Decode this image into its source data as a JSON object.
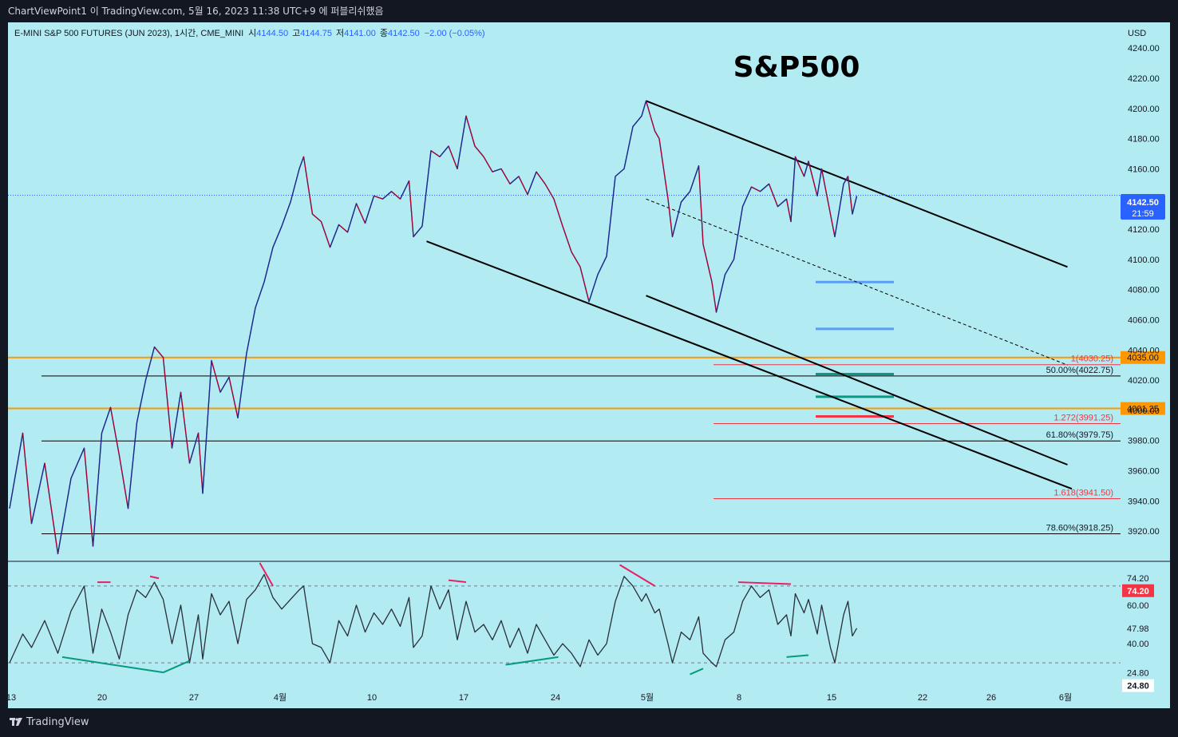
{
  "header": {
    "publish_line": "ChartViewPoint1 이 TradingView.com, 5월 16, 2023 11:38 UTC+9 에 퍼블리쉬했음"
  },
  "chart_data": {
    "type": "line",
    "symbol_line": "E-MINI S&P 500 FUTURES (JUN 2023), 1시간, CME_MINI",
    "ohlc": {
      "o_label": "시",
      "o": "4144.50",
      "h_label": "고",
      "h": "4144.75",
      "l_label": "저",
      "l": "4141.00",
      "c_label": "종",
      "c": "4142.50",
      "change": "−2.00 (−0.05%)"
    },
    "title": "S&P500",
    "currency": "USD",
    "price_axis": {
      "ticks": [
        4240,
        4220,
        4200,
        4180,
        4160,
        4140,
        4120,
        4100,
        4080,
        4060,
        4040,
        4020,
        4000,
        3980,
        3960,
        3940,
        3920
      ],
      "range": [
        3900,
        4257
      ]
    },
    "time_axis": {
      "labels": [
        "13",
        "20",
        "27",
        "4월",
        "10",
        "17",
        "24",
        "5월",
        "8",
        "15",
        "22",
        "26",
        "6월"
      ]
    },
    "last_price": {
      "value": "4142.50",
      "countdown": "21:59",
      "raw": 4142.5
    },
    "price_series": [
      {
        "t": 0,
        "p": 3935
      },
      {
        "t": 3,
        "p": 3985
      },
      {
        "t": 5,
        "p": 3925
      },
      {
        "t": 8,
        "p": 3965
      },
      {
        "t": 11,
        "p": 3905
      },
      {
        "t": 14,
        "p": 3955
      },
      {
        "t": 17,
        "p": 3975
      },
      {
        "t": 19,
        "p": 3910
      },
      {
        "t": 21,
        "p": 3985
      },
      {
        "t": 23,
        "p": 4002
      },
      {
        "t": 25,
        "p": 3970
      },
      {
        "t": 27,
        "p": 3935
      },
      {
        "t": 29,
        "p": 3992
      },
      {
        "t": 31,
        "p": 4020
      },
      {
        "t": 33,
        "p": 4042
      },
      {
        "t": 35,
        "p": 4035
      },
      {
        "t": 37,
        "p": 3975
      },
      {
        "t": 39,
        "p": 4012
      },
      {
        "t": 41,
        "p": 3965
      },
      {
        "t": 43,
        "p": 3985
      },
      {
        "t": 44,
        "p": 3945
      },
      {
        "t": 46,
        "p": 4033
      },
      {
        "t": 48,
        "p": 4012
      },
      {
        "t": 50,
        "p": 4022
      },
      {
        "t": 52,
        "p": 3995
      },
      {
        "t": 54,
        "p": 4038
      },
      {
        "t": 56,
        "p": 4068
      },
      {
        "t": 58,
        "p": 4085
      },
      {
        "t": 60,
        "p": 4108
      },
      {
        "t": 62,
        "p": 4122
      },
      {
        "t": 64,
        "p": 4138
      },
      {
        "t": 66,
        "p": 4160
      },
      {
        "t": 67,
        "p": 4168
      },
      {
        "t": 69,
        "p": 4130
      },
      {
        "t": 71,
        "p": 4125
      },
      {
        "t": 73,
        "p": 4108
      },
      {
        "t": 75,
        "p": 4123
      },
      {
        "t": 77,
        "p": 4118
      },
      {
        "t": 79,
        "p": 4137
      },
      {
        "t": 81,
        "p": 4124
      },
      {
        "t": 83,
        "p": 4142
      },
      {
        "t": 85,
        "p": 4140
      },
      {
        "t": 87,
        "p": 4145
      },
      {
        "t": 89,
        "p": 4140
      },
      {
        "t": 91,
        "p": 4152
      },
      {
        "t": 92,
        "p": 4115
      },
      {
        "t": 94,
        "p": 4122
      },
      {
        "t": 96,
        "p": 4172
      },
      {
        "t": 98,
        "p": 4168
      },
      {
        "t": 100,
        "p": 4175
      },
      {
        "t": 102,
        "p": 4160
      },
      {
        "t": 104,
        "p": 4195
      },
      {
        "t": 106,
        "p": 4175
      },
      {
        "t": 108,
        "p": 4168
      },
      {
        "t": 110,
        "p": 4158
      },
      {
        "t": 112,
        "p": 4160
      },
      {
        "t": 114,
        "p": 4150
      },
      {
        "t": 116,
        "p": 4155
      },
      {
        "t": 118,
        "p": 4143
      },
      {
        "t": 120,
        "p": 4158
      },
      {
        "t": 122,
        "p": 4150
      },
      {
        "t": 124,
        "p": 4140
      },
      {
        "t": 126,
        "p": 4122
      },
      {
        "t": 128,
        "p": 4105
      },
      {
        "t": 130,
        "p": 4095
      },
      {
        "t": 132,
        "p": 4072
      },
      {
        "t": 134,
        "p": 4090
      },
      {
        "t": 136,
        "p": 4102
      },
      {
        "t": 138,
        "p": 4155
      },
      {
        "t": 140,
        "p": 4160
      },
      {
        "t": 142,
        "p": 4188
      },
      {
        "t": 144,
        "p": 4195
      },
      {
        "t": 145,
        "p": 4205
      },
      {
        "t": 147,
        "p": 4185
      },
      {
        "t": 148,
        "p": 4180
      },
      {
        "t": 150,
        "p": 4140
      },
      {
        "t": 151,
        "p": 4115
      },
      {
        "t": 153,
        "p": 4138
      },
      {
        "t": 155,
        "p": 4145
      },
      {
        "t": 157,
        "p": 4162
      },
      {
        "t": 158,
        "p": 4110
      },
      {
        "t": 160,
        "p": 4085
      },
      {
        "t": 161,
        "p": 4065
      },
      {
        "t": 163,
        "p": 4090
      },
      {
        "t": 165,
        "p": 4100
      },
      {
        "t": 167,
        "p": 4135
      },
      {
        "t": 169,
        "p": 4148
      },
      {
        "t": 171,
        "p": 4145
      },
      {
        "t": 173,
        "p": 4150
      },
      {
        "t": 175,
        "p": 4135
      },
      {
        "t": 177,
        "p": 4140
      },
      {
        "t": 178,
        "p": 4125
      },
      {
        "t": 179,
        "p": 4168
      },
      {
        "t": 181,
        "p": 4155
      },
      {
        "t": 182,
        "p": 4165
      },
      {
        "t": 184,
        "p": 4142
      },
      {
        "t": 185,
        "p": 4160
      },
      {
        "t": 187,
        "p": 4130
      },
      {
        "t": 188,
        "p": 4115
      },
      {
        "t": 190,
        "p": 4150
      },
      {
        "t": 191,
        "p": 4155
      },
      {
        "t": 192,
        "p": 4130
      },
      {
        "t": 193,
        "p": 4142
      }
    ],
    "trend_lines": [
      {
        "name": "channel-upper",
        "x1": 145,
        "y1": 4205,
        "x2": 241,
        "y2": 4095
      },
      {
        "name": "channel-lower-1",
        "x1": 95,
        "y1": 4112,
        "x2": 242,
        "y2": 3948
      },
      {
        "name": "channel-lower-2",
        "x1": 145,
        "y1": 4076,
        "x2": 241,
        "y2": 3964
      },
      {
        "name": "channel-mid-dashed",
        "x1": 145,
        "y1": 4140,
        "x2": 241,
        "y2": 4030
      }
    ],
    "horizontal_levels": [
      {
        "price": 4035.0,
        "label": "4035.00",
        "color": "#ff9800",
        "kind": "orange-level"
      },
      {
        "price": 4001.25,
        "label": "4001.25",
        "color": "#ff9800",
        "kind": "orange-level"
      },
      {
        "price": 4022.75,
        "label": "50.00%(4022.75)",
        "color": "#000000",
        "kind": "fib"
      },
      {
        "price": 3979.75,
        "label": "61.80%(3979.75)",
        "color": "#000000",
        "kind": "fib"
      },
      {
        "price": 3918.25,
        "label": "78.60%(3918.25)",
        "color": "#000000",
        "kind": "fib"
      },
      {
        "price": 4030.25,
        "label": "1(4030.25)",
        "color": "#f23645",
        "kind": "ext"
      },
      {
        "price": 3991.25,
        "label": "1.272(3991.25)",
        "color": "#f23645",
        "kind": "ext"
      },
      {
        "price": 3941.5,
        "label": "1.618(3941.50)",
        "color": "#f23645",
        "kind": "ext"
      }
    ],
    "target_marks": [
      {
        "price": 4085,
        "color": "#5b9cf6"
      },
      {
        "price": 4054,
        "color": "#5b9cf6"
      },
      {
        "price": 4024,
        "color": "#089981"
      },
      {
        "price": 4009,
        "color": "#089981"
      },
      {
        "price": 3996,
        "color": "#f23645"
      }
    ],
    "rsi": {
      "range": [
        18,
        82
      ],
      "levels": [
        70,
        30
      ],
      "ticks": [
        {
          "value": "74.20",
          "v": 74.2
        },
        {
          "value": "60.00",
          "v": 60
        },
        {
          "value": "47.98",
          "v": 47.98
        },
        {
          "value": "40.00",
          "v": 40
        },
        {
          "value": "24.80",
          "v": 24.8
        }
      ],
      "badges": [
        {
          "value": "74.20",
          "v": 74.2,
          "color": "#f23645"
        },
        {
          "value": "24.80",
          "v": 24.8,
          "color": "#ffffff"
        }
      ],
      "series": [
        {
          "t": 0,
          "v": 30
        },
        {
          "t": 3,
          "v": 45
        },
        {
          "t": 5,
          "v": 38
        },
        {
          "t": 8,
          "v": 52
        },
        {
          "t": 11,
          "v": 35
        },
        {
          "t": 14,
          "v": 57
        },
        {
          "t": 17,
          "v": 70
        },
        {
          "t": 19,
          "v": 35
        },
        {
          "t": 21,
          "v": 58
        },
        {
          "t": 23,
          "v": 46
        },
        {
          "t": 25,
          "v": 32
        },
        {
          "t": 27,
          "v": 55
        },
        {
          "t": 29,
          "v": 68
        },
        {
          "t": 31,
          "v": 64
        },
        {
          "t": 33,
          "v": 72
        },
        {
          "t": 35,
          "v": 63
        },
        {
          "t": 37,
          "v": 40
        },
        {
          "t": 39,
          "v": 60
        },
        {
          "t": 41,
          "v": 30
        },
        {
          "t": 43,
          "v": 55
        },
        {
          "t": 44,
          "v": 32
        },
        {
          "t": 46,
          "v": 66
        },
        {
          "t": 48,
          "v": 55
        },
        {
          "t": 50,
          "v": 62
        },
        {
          "t": 52,
          "v": 40
        },
        {
          "t": 54,
          "v": 63
        },
        {
          "t": 56,
          "v": 68
        },
        {
          "t": 58,
          "v": 76
        },
        {
          "t": 60,
          "v": 64
        },
        {
          "t": 62,
          "v": 58
        },
        {
          "t": 64,
          "v": 63
        },
        {
          "t": 66,
          "v": 68
        },
        {
          "t": 67,
          "v": 70
        },
        {
          "t": 69,
          "v": 40
        },
        {
          "t": 71,
          "v": 38
        },
        {
          "t": 73,
          "v": 30
        },
        {
          "t": 75,
          "v": 52
        },
        {
          "t": 77,
          "v": 44
        },
        {
          "t": 79,
          "v": 60
        },
        {
          "t": 81,
          "v": 46
        },
        {
          "t": 83,
          "v": 56
        },
        {
          "t": 85,
          "v": 50
        },
        {
          "t": 87,
          "v": 58
        },
        {
          "t": 89,
          "v": 49
        },
        {
          "t": 91,
          "v": 64
        },
        {
          "t": 92,
          "v": 38
        },
        {
          "t": 94,
          "v": 44
        },
        {
          "t": 96,
          "v": 70
        },
        {
          "t": 98,
          "v": 58
        },
        {
          "t": 100,
          "v": 68
        },
        {
          "t": 102,
          "v": 42
        },
        {
          "t": 104,
          "v": 62
        },
        {
          "t": 106,
          "v": 46
        },
        {
          "t": 108,
          "v": 50
        },
        {
          "t": 110,
          "v": 42
        },
        {
          "t": 112,
          "v": 52
        },
        {
          "t": 114,
          "v": 38
        },
        {
          "t": 116,
          "v": 48
        },
        {
          "t": 118,
          "v": 35
        },
        {
          "t": 120,
          "v": 50
        },
        {
          "t": 122,
          "v": 42
        },
        {
          "t": 124,
          "v": 34
        },
        {
          "t": 126,
          "v": 40
        },
        {
          "t": 128,
          "v": 35
        },
        {
          "t": 130,
          "v": 28
        },
        {
          "t": 132,
          "v": 42
        },
        {
          "t": 134,
          "v": 34
        },
        {
          "t": 136,
          "v": 40
        },
        {
          "t": 138,
          "v": 62
        },
        {
          "t": 140,
          "v": 75
        },
        {
          "t": 142,
          "v": 70
        },
        {
          "t": 144,
          "v": 62
        },
        {
          "t": 145,
          "v": 66
        },
        {
          "t": 147,
          "v": 56
        },
        {
          "t": 148,
          "v": 58
        },
        {
          "t": 150,
          "v": 40
        },
        {
          "t": 151,
          "v": 30
        },
        {
          "t": 153,
          "v": 46
        },
        {
          "t": 155,
          "v": 42
        },
        {
          "t": 157,
          "v": 54
        },
        {
          "t": 158,
          "v": 35
        },
        {
          "t": 160,
          "v": 30
        },
        {
          "t": 161,
          "v": 28
        },
        {
          "t": 163,
          "v": 42
        },
        {
          "t": 165,
          "v": 46
        },
        {
          "t": 167,
          "v": 62
        },
        {
          "t": 169,
          "v": 70
        },
        {
          "t": 171,
          "v": 64
        },
        {
          "t": 173,
          "v": 68
        },
        {
          "t": 175,
          "v": 50
        },
        {
          "t": 177,
          "v": 55
        },
        {
          "t": 178,
          "v": 44
        },
        {
          "t": 179,
          "v": 66
        },
        {
          "t": 181,
          "v": 56
        },
        {
          "t": 182,
          "v": 63
        },
        {
          "t": 184,
          "v": 45
        },
        {
          "t": 185,
          "v": 60
        },
        {
          "t": 187,
          "v": 38
        },
        {
          "t": 188,
          "v": 30
        },
        {
          "t": 190,
          "v": 55
        },
        {
          "t": 191,
          "v": 62
        },
        {
          "t": 192,
          "v": 44
        },
        {
          "t": 193,
          "v": 48
        }
      ],
      "divergences": [
        {
          "t1": 20,
          "v1": 72,
          "t2": 23,
          "v2": 72,
          "color": "#e91e63"
        },
        {
          "t1": 32,
          "v1": 75,
          "t2": 34,
          "v2": 74,
          "color": "#e91e63"
        },
        {
          "t1": 57,
          "v1": 82,
          "t2": 60,
          "v2": 70,
          "color": "#e91e63"
        },
        {
          "t1": 100,
          "v1": 73,
          "t2": 104,
          "v2": 72,
          "color": "#e91e63"
        },
        {
          "t1": 139,
          "v1": 81,
          "t2": 147,
          "v2": 70,
          "color": "#e91e63"
        },
        {
          "t1": 166,
          "v1": 72,
          "t2": 178,
          "v2": 71,
          "color": "#e91e63"
        },
        {
          "t1": 12,
          "v1": 33,
          "t2": 35,
          "v2": 25,
          "color": "#089981"
        },
        {
          "t1": 35,
          "v1": 25,
          "t2": 41,
          "v2": 31,
          "color": "#089981"
        },
        {
          "t1": 113,
          "v1": 29,
          "t2": 125,
          "v2": 33,
          "color": "#089981"
        },
        {
          "t1": 155,
          "v1": 24,
          "t2": 158,
          "v2": 27,
          "color": "#089981"
        },
        {
          "t1": 177,
          "v1": 33,
          "t2": 182,
          "v2": 34,
          "color": "#089981"
        }
      ]
    },
    "colors": {
      "background": "#b2ebf2",
      "price_line": "#2962ff",
      "up": "#1e2a8c",
      "down": "#b2002d",
      "text": "#131722",
      "axis_text": "#131722",
      "last_price_badge": "#2962ff"
    }
  },
  "footer": {
    "brand": "TradingView"
  }
}
